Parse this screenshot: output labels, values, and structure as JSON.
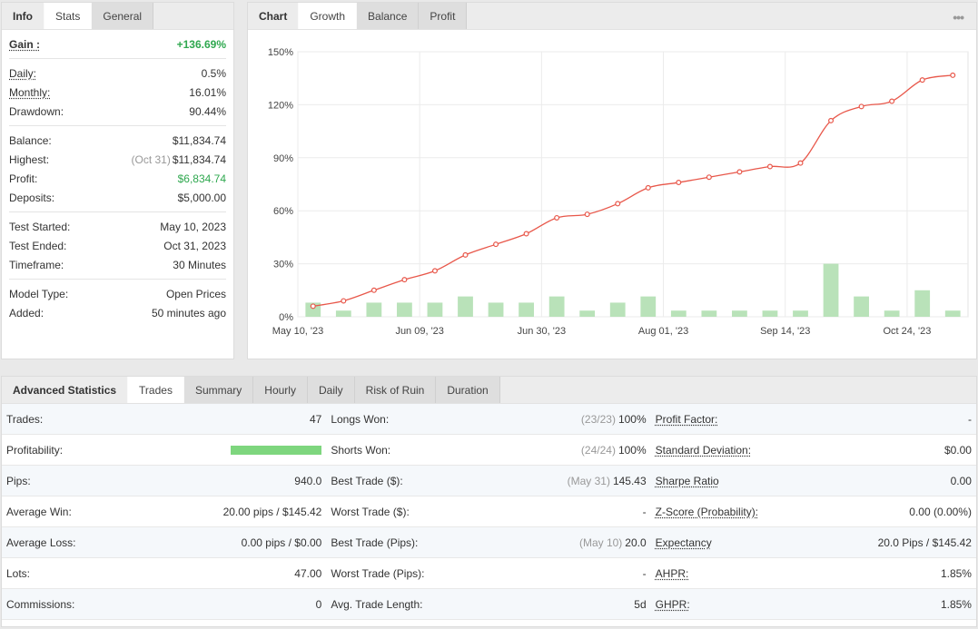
{
  "info": {
    "tabs": [
      "Info",
      "Stats",
      "General"
    ],
    "gain": {
      "label": "Gain :",
      "value": "+136.69%"
    },
    "daily": {
      "label": "Daily:",
      "value": "0.5%"
    },
    "monthly": {
      "label": "Monthly:",
      "value": "16.01%"
    },
    "drawdown": {
      "label": "Drawdown:",
      "value": "90.44%"
    },
    "balance": {
      "label": "Balance:",
      "value": "$11,834.74"
    },
    "highest": {
      "label": "Highest:",
      "date": "(Oct 31)",
      "value": "$11,834.74"
    },
    "profit": {
      "label": "Profit:",
      "value": "$6,834.74"
    },
    "deposits": {
      "label": "Deposits:",
      "value": "$5,000.00"
    },
    "test_started": {
      "label": "Test Started:",
      "value": "May 10, 2023"
    },
    "test_ended": {
      "label": "Test Ended:",
      "value": "Oct 31, 2023"
    },
    "timeframe": {
      "label": "Timeframe:",
      "value": "30 Minutes"
    },
    "model_type": {
      "label": "Model Type:",
      "value": "Open Prices"
    },
    "added": {
      "label": "Added:",
      "value": "50 minutes ago"
    }
  },
  "chart_tabs": [
    "Chart",
    "Growth",
    "Balance",
    "Profit"
  ],
  "chart_menu_icon": "more-dots-icon",
  "chart_data": {
    "type": "line",
    "y_ticks": [
      "150%",
      "120%",
      "90%",
      "60%",
      "30%",
      "0%"
    ],
    "x_ticks": [
      "May 10, '23",
      "Jun 09, '23",
      "Jun 30, '23",
      "Aug 01, '23",
      "Sep 14, '23",
      "Oct 24, '23"
    ],
    "ylim": [
      0,
      150
    ],
    "grid": true,
    "series": [
      {
        "name": "Growth",
        "type": "line",
        "color": "#e8574a",
        "values": [
          6,
          9,
          15,
          21,
          26,
          35,
          41,
          47,
          56,
          58,
          64,
          73,
          76,
          79,
          82,
          85,
          87,
          111,
          119,
          122,
          134,
          136.69
        ]
      },
      {
        "name": "Monthly",
        "type": "bar",
        "color": "#b9e2b9",
        "values": [
          8,
          3.5,
          8,
          8,
          8,
          11.5,
          8,
          8,
          11.5,
          3.5,
          8,
          11.5,
          3.5,
          3.5,
          3.5,
          3.5,
          3.5,
          30,
          11.5,
          3.5,
          15,
          3.5
        ]
      }
    ]
  },
  "stats": {
    "title": "Advanced Statistics",
    "tabs": [
      "Trades",
      "Summary",
      "Hourly",
      "Daily",
      "Risk of Ruin",
      "Duration"
    ],
    "col1": [
      {
        "label": "Trades:",
        "value": "47"
      },
      {
        "label": "Profitability:",
        "progress": 1.0
      },
      {
        "label": "Pips:",
        "value": "940.0"
      },
      {
        "label": "Average Win:",
        "value": "20.00 pips / $145.42"
      },
      {
        "label": "Average Loss:",
        "value": "0.00 pips / $0.00"
      },
      {
        "label": "Lots:",
        "value": "47.00"
      },
      {
        "label": "Commissions:",
        "value": "0"
      }
    ],
    "col2": [
      {
        "label": "Longs Won:",
        "muted": "(23/23)",
        "value": "100%"
      },
      {
        "label": "Shorts Won:",
        "muted": "(24/24)",
        "value": "100%"
      },
      {
        "label": "Best Trade ($):",
        "muted": "(May 31)",
        "value": "145.43"
      },
      {
        "label": "Worst Trade ($):",
        "value": "-"
      },
      {
        "label": "Best Trade (Pips):",
        "muted": "(May 10)",
        "value": "20.0"
      },
      {
        "label": "Worst Trade (Pips):",
        "value": "-"
      },
      {
        "label": "Avg. Trade Length:",
        "value": "5d"
      }
    ],
    "col3": [
      {
        "label": "Profit Factor:",
        "value": "-"
      },
      {
        "label": "Standard Deviation:",
        "value": "$0.00"
      },
      {
        "label": "Sharpe Ratio",
        "value": "0.00"
      },
      {
        "label": "Z-Score (Probability):",
        "value": "0.00 (0.00%)"
      },
      {
        "label": "Expectancy",
        "value": "20.0 Pips / $145.42"
      },
      {
        "label": "AHPR:",
        "value": "1.85%"
      },
      {
        "label": "GHPR:",
        "value": "1.85%"
      }
    ]
  },
  "colors": {
    "gain_green": "#2fa84f",
    "line_red": "#e8574a",
    "bar_green": "#b9e2b9",
    "progress_green": "#7ed67e"
  }
}
